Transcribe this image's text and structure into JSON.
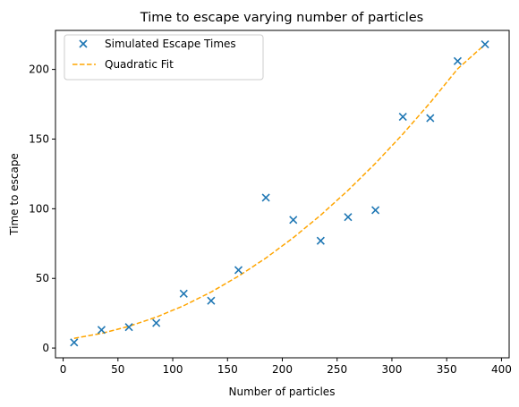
{
  "chart_data": {
    "type": "scatter",
    "title": "Time to escape varying number of particles",
    "xlabel": "Number of particles",
    "ylabel": "Time to escape",
    "xlim": [
      -7,
      407
    ],
    "ylim": [
      -7,
      228
    ],
    "x_ticks": [
      0,
      50,
      100,
      150,
      200,
      250,
      300,
      350,
      400
    ],
    "y_ticks": [
      0,
      50,
      100,
      150,
      200
    ],
    "grid": false,
    "legend_position": "top-left",
    "series": [
      {
        "name": "Simulated Escape Times",
        "kind": "scatter",
        "marker": "x",
        "color": "#1f77b4",
        "x": [
          10,
          35,
          60,
          85,
          110,
          135,
          160,
          185,
          210,
          235,
          260,
          285,
          310,
          335,
          360,
          385
        ],
        "y": [
          4,
          13,
          15,
          18,
          39,
          34,
          56,
          108,
          92,
          77,
          94,
          99,
          166,
          165,
          206,
          218
        ]
      },
      {
        "name": "Quadratic Fit",
        "kind": "line",
        "line_style": "dashed",
        "color": "#ffa500",
        "x": [
          10,
          35,
          60,
          85,
          110,
          135,
          160,
          185,
          210,
          235,
          260,
          285,
          310,
          335,
          360,
          385
        ],
        "y": [
          7,
          10.5,
          15.6,
          22.2,
          30.4,
          40.2,
          51.6,
          64.6,
          79.2,
          95.4,
          113.2,
          132.6,
          153.6,
          176.2,
          200.4,
          218
        ]
      }
    ]
  }
}
